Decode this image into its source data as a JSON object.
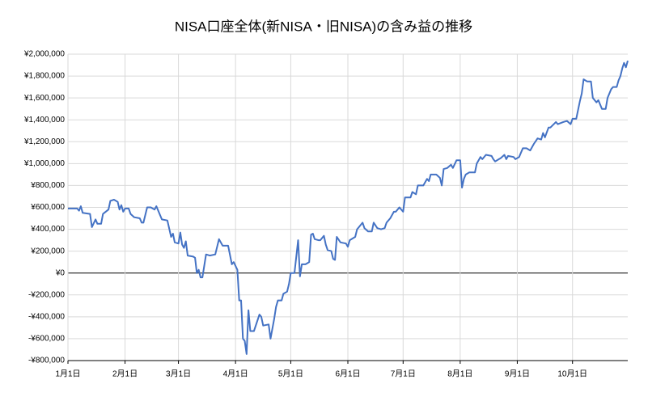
{
  "chart_data": {
    "type": "line",
    "title": "NISA口座全体(新NISA・旧NISA)の含み益の推移",
    "x": [
      0,
      5,
      6,
      7,
      8,
      12,
      13,
      15,
      16,
      18,
      19,
      22,
      23,
      25,
      27,
      28,
      29,
      30,
      31,
      33,
      34,
      36,
      39,
      40,
      41,
      43,
      45,
      47,
      48,
      51,
      54,
      56,
      57,
      58,
      60,
      61,
      62,
      63,
      64,
      65,
      68,
      69,
      70,
      71,
      72,
      73,
      75,
      77,
      80,
      82,
      84,
      87,
      89,
      90,
      92,
      93,
      94,
      95,
      96,
      97,
      98,
      99,
      101,
      104,
      105,
      106,
      109,
      110,
      112,
      113,
      114,
      116,
      117,
      119,
      120,
      121,
      123,
      125,
      126,
      127,
      129,
      131,
      132,
      133,
      134,
      136,
      137,
      139,
      140,
      141,
      143,
      144,
      145,
      146,
      148,
      151,
      152,
      153,
      155,
      156,
      157,
      158,
      160,
      161,
      163,
      165,
      166,
      168,
      170,
      172,
      173,
      175,
      177,
      178,
      180,
      182,
      183,
      186,
      187,
      189,
      190,
      193,
      195,
      196,
      197,
      200,
      202,
      203,
      204,
      206,
      208,
      209,
      211,
      213,
      214,
      215,
      216,
      218,
      221,
      222,
      224,
      225,
      227,
      230,
      231,
      232,
      234,
      235,
      237,
      238,
      239,
      242,
      243,
      245,
      247,
      249,
      251,
      253,
      255,
      257,
      258,
      259,
      261,
      262,
      265,
      266,
      269,
      271,
      273,
      274,
      276,
      278,
      279,
      280,
      282,
      284,
      285,
      287,
      288,
      290,
      292,
      293,
      295,
      296,
      298,
      299,
      300,
      301,
      302,
      303,
      304
    ],
    "series": [
      {
        "color": "#4472c4",
        "values": [
          590000,
          590000,
          570000,
          610000,
          550000,
          540000,
          420000,
          490000,
          450000,
          450000,
          540000,
          580000,
          660000,
          670000,
          650000,
          580000,
          620000,
          560000,
          590000,
          590000,
          540000,
          510000,
          500000,
          460000,
          460000,
          600000,
          600000,
          580000,
          610000,
          490000,
          480000,
          330000,
          360000,
          280000,
          270000,
          370000,
          260000,
          230000,
          290000,
          160000,
          150000,
          140000,
          0,
          30000,
          -40000,
          -40000,
          170000,
          160000,
          170000,
          310000,
          250000,
          250000,
          80000,
          100000,
          30000,
          -250000,
          -250000,
          -600000,
          -620000,
          -740000,
          -340000,
          -530000,
          -530000,
          -380000,
          -400000,
          -480000,
          -470000,
          -600000,
          -420000,
          -310000,
          -250000,
          -250000,
          -190000,
          -170000,
          -100000,
          0,
          0,
          300000,
          -30000,
          80000,
          80000,
          100000,
          350000,
          360000,
          310000,
          300000,
          300000,
          340000,
          260000,
          210000,
          200000,
          130000,
          120000,
          330000,
          280000,
          270000,
          240000,
          300000,
          320000,
          330000,
          400000,
          420000,
          460000,
          410000,
          380000,
          380000,
          460000,
          410000,
          400000,
          410000,
          460000,
          500000,
          560000,
          560000,
          600000,
          560000,
          690000,
          690000,
          740000,
          720000,
          800000,
          800000,
          860000,
          840000,
          900000,
          900000,
          870000,
          800000,
          950000,
          960000,
          990000,
          960000,
          1030000,
          1030000,
          780000,
          860000,
          900000,
          920000,
          920000,
          1000000,
          1060000,
          1040000,
          1080000,
          1070000,
          1040000,
          1020000,
          1040000,
          1050000,
          1080000,
          1040000,
          1070000,
          1060000,
          1040000,
          1060000,
          1140000,
          1140000,
          1120000,
          1180000,
          1230000,
          1220000,
          1280000,
          1240000,
          1330000,
          1330000,
          1380000,
          1360000,
          1380000,
          1390000,
          1360000,
          1410000,
          1410000,
          1570000,
          1640000,
          1770000,
          1750000,
          1750000,
          1600000,
          1560000,
          1580000,
          1500000,
          1500000,
          1600000,
          1680000,
          1700000,
          1700000,
          1760000,
          1800000,
          1870000,
          1920000,
          1880000,
          1940000
        ]
      }
    ],
    "xlim": [
      0,
      304
    ],
    "xticks": [
      {
        "value": 0,
        "label": "1月1日"
      },
      {
        "value": 31,
        "label": "2月1日"
      },
      {
        "value": 60,
        "label": "3月1日"
      },
      {
        "value": 91,
        "label": "4月1日"
      },
      {
        "value": 121,
        "label": "5月1日"
      },
      {
        "value": 152,
        "label": "6月1日"
      },
      {
        "value": 182,
        "label": "7月1日"
      },
      {
        "value": 213,
        "label": "8月1日"
      },
      {
        "value": 244,
        "label": "9月1日"
      },
      {
        "value": 274,
        "label": "10月1日"
      }
    ],
    "ylim": [
      -800000,
      2000000
    ],
    "yticks": [
      {
        "value": -800000,
        "label": "-¥800,000"
      },
      {
        "value": -600000,
        "label": "-¥600,000"
      },
      {
        "value": -400000,
        "label": "-¥400,000"
      },
      {
        "value": -200000,
        "label": "-¥200,000"
      },
      {
        "value": 0,
        "label": "¥0"
      },
      {
        "value": 200000,
        "label": "¥200,000"
      },
      {
        "value": 400000,
        "label": "¥400,000"
      },
      {
        "value": 600000,
        "label": "¥600,000"
      },
      {
        "value": 800000,
        "label": "¥800,000"
      },
      {
        "value": 1000000,
        "label": "¥1,000,000"
      },
      {
        "value": 1200000,
        "label": "¥1,200,000"
      },
      {
        "value": 1400000,
        "label": "¥1,400,000"
      },
      {
        "value": 1600000,
        "label": "¥1,600,000"
      },
      {
        "value": 1800000,
        "label": "¥1,800,000"
      },
      {
        "value": 2000000,
        "label": "¥2,000,000"
      }
    ],
    "grid": true
  }
}
